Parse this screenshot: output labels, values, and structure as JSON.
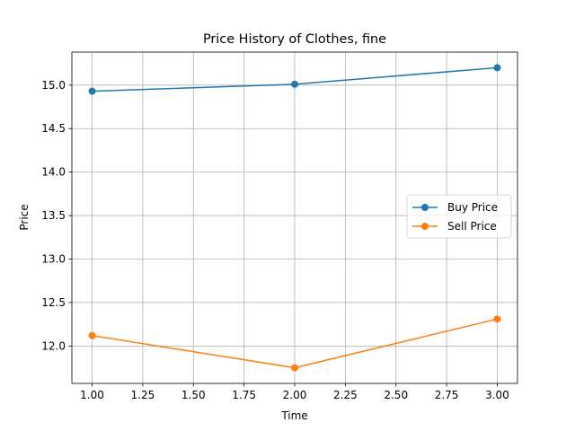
{
  "chart_data": {
    "type": "line",
    "title": "Price History of Clothes, fine",
    "xlabel": "Time",
    "ylabel": "Price",
    "xlim": [
      0.9,
      3.1
    ],
    "ylim": [
      11.57,
      15.38
    ],
    "xticks": [
      1.0,
      1.25,
      1.5,
      1.75,
      2.0,
      2.25,
      2.5,
      2.75,
      3.0
    ],
    "xtick_labels": [
      "1.00",
      "1.25",
      "1.50",
      "1.75",
      "2.00",
      "2.25",
      "2.50",
      "2.75",
      "3.00"
    ],
    "yticks": [
      12.0,
      12.5,
      13.0,
      13.5,
      14.0,
      14.5,
      15.0
    ],
    "ytick_labels": [
      "12.0",
      "12.5",
      "13.0",
      "13.5",
      "14.0",
      "14.5",
      "15.0"
    ],
    "grid": true,
    "legend_position": "center-right",
    "x": [
      1,
      2,
      3
    ],
    "series": [
      {
        "name": "Buy Price",
        "color": "#1f77b4",
        "values": [
          14.93,
          15.01,
          15.2
        ]
      },
      {
        "name": "Sell Price",
        "color": "#ff7f0e",
        "values": [
          12.12,
          11.75,
          12.31
        ]
      }
    ]
  }
}
